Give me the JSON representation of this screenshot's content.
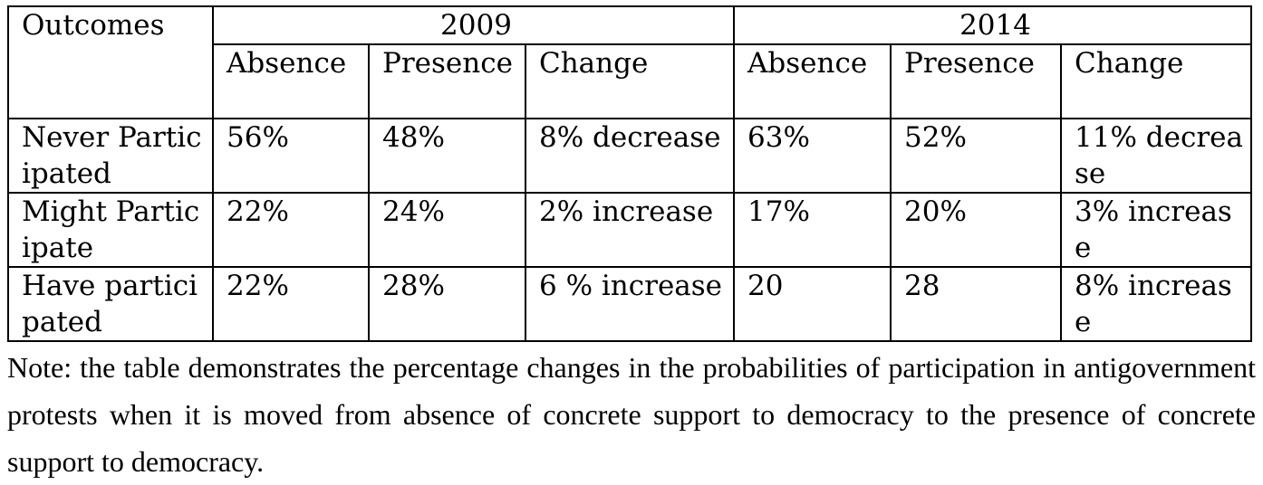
{
  "table": {
    "corner": "Outcomes",
    "years": [
      "2009",
      "2014"
    ],
    "subheaders": [
      "Absence",
      "Presence",
      "Change",
      "Absence",
      "Presence",
      "Change"
    ],
    "rows": [
      {
        "label": "Never Participated",
        "cells": [
          "56%",
          "48%",
          "8% decrease",
          "63%",
          "52%",
          "11% decrease"
        ]
      },
      {
        "label": "Might Participate",
        "cells": [
          "22%",
          "24%",
          "2% increase",
          "17%",
          "20%",
          "3% increase"
        ]
      },
      {
        "label": "Have participated",
        "cells": [
          "22%",
          "28%",
          "6 % increase",
          "20",
          "28",
          "8% increase"
        ]
      }
    ]
  },
  "note": "Note: the table demonstrates the percentage changes in the probabilities of participation in antigovernment protests when it is moved from absence of concrete support to democracy to the presence of concrete support to democracy."
}
